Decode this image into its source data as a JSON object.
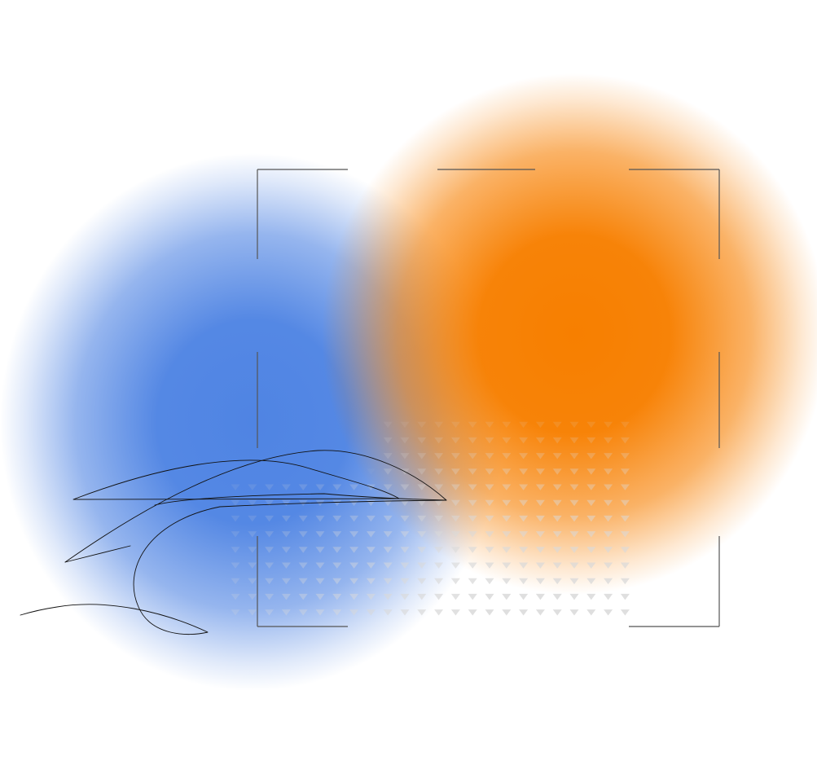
{
  "colors": {
    "background": "#ffffff",
    "blue_blob": "#4f84e3",
    "orange_blob": "#f77f00",
    "frame_lines": "#555555",
    "triangle_pattern": "#d9d9d9",
    "scribble": "#111111"
  },
  "icons": {
    "frame": "dashed-corner-frame",
    "pattern": "triangle-dot-grid",
    "scribble": "hand-drawn-line"
  }
}
